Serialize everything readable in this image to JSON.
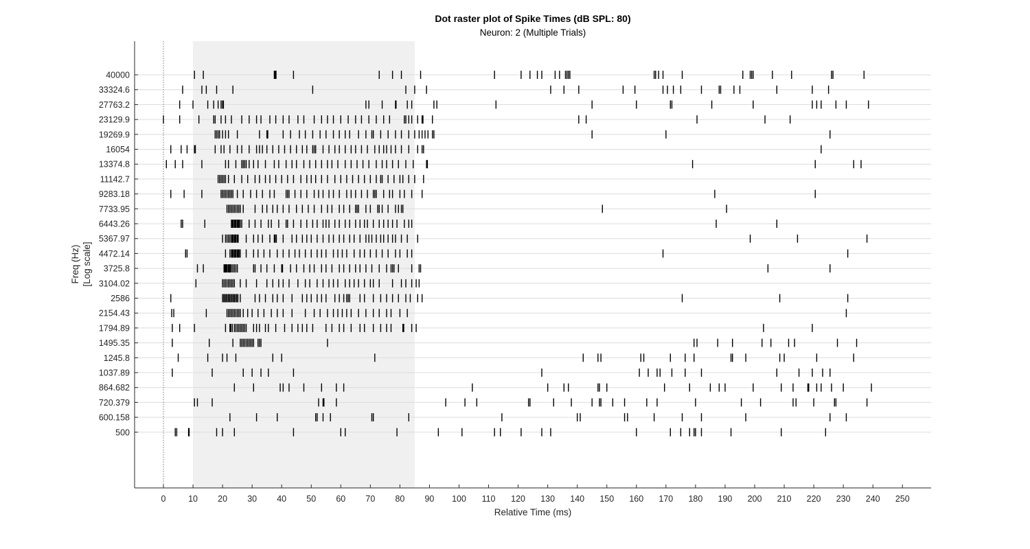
{
  "chart_data": {
    "type": "scatter",
    "title": "Dot raster plot of Spike Times (dB SPL: 80)",
    "subtitle": "Neuron: 2 (Multiple Trials)",
    "xlabel": "Relative Time (ms)",
    "ylabel": "Freq (Hz)",
    "ylabel_line2": "[Log scale]",
    "xlim": [
      -10,
      260
    ],
    "x_ticks": [
      0,
      10,
      20,
      30,
      40,
      50,
      60,
      70,
      80,
      90,
      100,
      110,
      120,
      130,
      140,
      150,
      160,
      170,
      180,
      190,
      200,
      210,
      220,
      230,
      240,
      250
    ],
    "y_scale": "log",
    "y_categories": [
      "500",
      "600.158",
      "720.379",
      "864.682",
      "1037.89",
      "1245.8",
      "1495.35",
      "1794.89",
      "2154.43",
      "2586",
      "3104.02",
      "3725.8",
      "4472.14",
      "5367.97",
      "6443.26",
      "7733.95",
      "9283.18",
      "11142.7",
      "13374.8",
      "16054",
      "19269.9",
      "23129.9",
      "27763.2",
      "33324.6",
      "40000"
    ],
    "grid": "horizontal",
    "stimulus_window": [
      10,
      85
    ],
    "colors": {
      "spike": "#000000",
      "stimulus": "#f0f0f0",
      "grid": "#dcdcdc",
      "axis": "#262626"
    },
    "spikes": [
      {
        "freq": "500",
        "times": [
          4,
          4.5,
          8.5,
          8.7,
          18,
          20,
          24,
          44,
          60,
          61.5,
          79,
          93,
          101,
          112,
          114,
          121,
          128,
          131,
          160,
          171.5,
          175,
          178,
          179.5,
          180,
          182,
          192,
          209,
          224
        ]
      },
      {
        "freq": "600.158",
        "times": [
          22.5,
          31.5,
          38.5,
          51.5,
          52,
          54,
          56.5,
          70.5,
          71,
          83,
          114.5,
          140,
          141,
          156,
          157,
          166,
          175.5,
          182,
          197,
          225.5,
          231
        ]
      },
      {
        "freq": "720.379",
        "times": [
          10.5,
          11.5,
          16.5,
          52.5,
          54,
          54.3,
          58.5,
          95.5,
          102,
          106,
          123.5,
          124,
          132,
          138,
          145,
          147.5,
          148,
          152,
          156,
          163.5,
          167,
          180,
          195.5,
          202,
          213,
          214,
          220,
          227,
          227.5,
          238
        ]
      },
      {
        "freq": "864.682",
        "times": [
          24,
          30.5,
          39.5,
          40.5,
          42.5,
          47.5,
          53.5,
          58.5,
          61,
          104.5,
          130,
          135.5,
          137,
          147,
          147.5,
          150,
          169.5,
          178,
          185,
          188,
          190,
          199.5,
          209,
          213,
          218,
          218.3,
          221,
          222.5,
          226,
          230,
          239.5
        ]
      },
      {
        "freq": "1037.89",
        "times": [
          3,
          16.5,
          27,
          30,
          33,
          35.5,
          44,
          128,
          161,
          164,
          167,
          168,
          172,
          176.5,
          182,
          207.5,
          215,
          219.5,
          223,
          225.5
        ]
      },
      {
        "freq": "1245.8",
        "times": [
          5,
          15,
          20,
          21.5,
          24.5,
          37,
          40,
          71.5,
          142,
          147,
          148,
          161.5,
          162.5,
          171.5,
          176.5,
          179.5,
          192,
          192.5,
          197,
          208.5,
          210,
          221,
          233.5
        ]
      },
      {
        "freq": "1495.35",
        "times": [
          3,
          15.5,
          23.5,
          26,
          26.5,
          27,
          27.5,
          28,
          28.5,
          29,
          29.5,
          30,
          30.5,
          32,
          32.5,
          33,
          55.5,
          179.5,
          180.5,
          187.5,
          192.5,
          202.5,
          205.5,
          211.5,
          213.5,
          228,
          234.5
        ]
      },
      {
        "freq": "1794.89",
        "times": [
          3,
          5.5,
          10.5,
          21,
          22.5,
          22.8,
          23.3,
          24,
          24.5,
          25,
          25.5,
          26,
          26.5,
          27,
          27.5,
          28,
          30.5,
          31.5,
          32.5,
          34.5,
          35.5,
          38,
          41,
          43.5,
          45.5,
          47,
          48.5,
          50.5,
          55,
          57,
          59.5,
          61,
          63.5,
          66.5,
          68,
          71,
          73.5,
          75.5,
          77,
          81,
          81.3,
          84,
          85.5,
          203,
          219.5
        ]
      },
      {
        "freq": "2154.43",
        "times": [
          2.8,
          3.5,
          14.5,
          21.5,
          22,
          22.5,
          23,
          23.5,
          24,
          24.5,
          25,
          25.5,
          26,
          27,
          28.5,
          30,
          32,
          34,
          36.5,
          38.5,
          40.5,
          43.5,
          48,
          51,
          53,
          55.5,
          57.5,
          59,
          60.5,
          62,
          63.5,
          66,
          68.5,
          71,
          73,
          75.5,
          77,
          80,
          82.5,
          231
        ]
      },
      {
        "freq": "2586",
        "times": [
          2.5,
          20,
          20.4,
          20.8,
          21.2,
          21.6,
          22,
          22.4,
          22.8,
          23.2,
          23.6,
          24,
          24.4,
          24.8,
          25.2,
          26,
          31,
          32.5,
          34.5,
          37,
          38.5,
          40.5,
          43.5,
          47,
          48.5,
          50,
          52,
          53.5,
          55,
          58,
          59.5,
          61,
          62,
          62.5,
          63,
          66.5,
          68,
          71,
          73.5,
          75.5,
          77.5,
          79.5,
          82,
          83.5,
          86,
          87.5,
          175.5,
          208.5,
          231.5
        ]
      },
      {
        "freq": "3104.02",
        "times": [
          11,
          20,
          20.5,
          21,
          21.5,
          22,
          22.5,
          23,
          23.5,
          24,
          26,
          28,
          31.5,
          35,
          37,
          39,
          40.5,
          42.5,
          45.5,
          48,
          49.5,
          52,
          54,
          56,
          57.5,
          59,
          61.5,
          63,
          64.5,
          66,
          68,
          70,
          71,
          73,
          77.5,
          80.5,
          82,
          84,
          85.5,
          86.5
        ]
      },
      {
        "freq": "3725.8",
        "times": [
          11.5,
          13.5,
          20.5,
          20.8,
          21,
          21.3,
          21.6,
          22,
          22.3,
          22.6,
          23,
          23.5,
          24,
          24.5,
          25,
          30.5,
          31,
          33,
          35,
          37.5,
          40,
          40.3,
          43,
          45,
          47.5,
          49.5,
          51,
          53.5,
          55,
          57,
          59.5,
          61,
          63,
          65,
          66.5,
          68.5,
          70.5,
          73,
          75.5,
          77,
          77.5,
          78,
          79.5,
          84,
          86.5,
          87,
          204.5,
          225.5
        ]
      },
      {
        "freq": "4472.14",
        "times": [
          7.5,
          8,
          21,
          22.5,
          23,
          23.3,
          23.6,
          24,
          24.3,
          24.6,
          25,
          25.3,
          25.6,
          26,
          28,
          30.5,
          32,
          34,
          36,
          38.5,
          40.5,
          42.5,
          44.5,
          46,
          48,
          50,
          52,
          53.5,
          55,
          57.5,
          59,
          60.5,
          62,
          64.5,
          66.5,
          68,
          70,
          72,
          74,
          76,
          78.5,
          80,
          82.5,
          84,
          169,
          231.5
        ]
      },
      {
        "freq": "5367.97",
        "times": [
          20,
          21,
          21.5,
          22,
          22.5,
          23,
          23.3,
          23.6,
          24,
          24.3,
          24.6,
          25,
          25.3,
          28,
          30.5,
          32,
          33.5,
          36,
          37.5,
          37.8,
          38.2,
          40.5,
          43.5,
          45,
          47,
          48.5,
          50,
          52,
          54,
          56,
          57.5,
          59.5,
          61,
          63,
          64.5,
          66.5,
          68.5,
          69.5,
          70.5,
          72,
          73.5,
          74.5,
          76,
          77.5,
          78.5,
          80.5,
          82.5,
          86,
          198.5,
          214.5,
          238
        ]
      },
      {
        "freq": "6443.26",
        "times": [
          6,
          6.5,
          14,
          23,
          23.3,
          23.6,
          24,
          24.3,
          24.6,
          25,
          25.3,
          25.6,
          26,
          26.5,
          29,
          31,
          33,
          35.5,
          36.5,
          39,
          41.5,
          42,
          44,
          46.5,
          48.5,
          50.5,
          52,
          54,
          55,
          56,
          58,
          59.5,
          61.5,
          63,
          65,
          66.5,
          68,
          69,
          71,
          73,
          74.5,
          76,
          77.5,
          79,
          81.5,
          83,
          84,
          187,
          207.5
        ]
      },
      {
        "freq": "7733.95",
        "times": [
          21.5,
          22,
          22.5,
          23,
          23.5,
          24,
          24.5,
          25,
          25.5,
          26,
          27,
          31,
          33.5,
          35,
          37,
          38.5,
          40.5,
          42.5,
          45,
          47,
          49,
          51,
          53.5,
          55.5,
          57,
          59.5,
          61,
          63,
          65,
          65.5,
          66,
          68.5,
          70,
          72.5,
          73,
          74,
          76,
          78.5,
          79.5,
          80.5,
          81,
          148.5,
          190.5
        ]
      },
      {
        "freq": "9283.18",
        "times": [
          2.5,
          7,
          13,
          19.5,
          20,
          20.5,
          21,
          21.5,
          22,
          22.5,
          23,
          23.5,
          25,
          27,
          29.5,
          31.5,
          33.5,
          36,
          37.5,
          41.5,
          42,
          42.5,
          44.5,
          46.5,
          48.5,
          51,
          52.5,
          54,
          56,
          57.5,
          59.5,
          62,
          63.5,
          65,
          67,
          69,
          71,
          71.5,
          72,
          74.5,
          76.5,
          77.5,
          80,
          81.5,
          84,
          87.5,
          186.5,
          220.5
        ]
      },
      {
        "freq": "11142.7",
        "times": [
          18.5,
          19,
          19.5,
          20,
          20.5,
          21,
          22,
          24,
          26.5,
          28.5,
          31,
          32.5,
          34.5,
          36,
          38,
          40,
          42,
          44,
          46.5,
          48.5,
          50,
          51.5,
          53.5,
          55.5,
          58,
          60,
          62,
          64,
          66,
          68,
          70,
          72,
          73.5,
          74,
          76,
          78,
          80,
          81,
          83,
          85,
          88
        ]
      },
      {
        "freq": "13374.8",
        "times": [
          1,
          4,
          6.5,
          13,
          21,
          22,
          24.5,
          26.5,
          27,
          27.5,
          28,
          29,
          30.5,
          32,
          34.5,
          37.5,
          39,
          41.5,
          43.5,
          45,
          47.5,
          49.5,
          51.5,
          53.5,
          55.5,
          57,
          59,
          61.5,
          63.5,
          65.5,
          67.5,
          69.5,
          72,
          74,
          75.5,
          77.5,
          79.5,
          82,
          84.5,
          89,
          89.3,
          179,
          220.5,
          233.5,
          236
        ]
      },
      {
        "freq": "16054",
        "times": [
          2.5,
          6,
          8,
          10.5,
          10.8,
          17.5,
          19.5,
          20.5,
          22.5,
          25,
          26.5,
          29,
          31.5,
          32.5,
          33.5,
          35,
          37,
          39,
          41,
          43,
          45,
          47,
          48.5,
          50.5,
          51,
          51.5,
          54,
          56,
          58,
          59.5,
          61.5,
          63.5,
          65,
          67,
          69,
          71.5,
          73,
          74.5,
          75.5,
          77,
          78.5,
          80.5,
          83,
          86,
          87.5,
          88,
          222.5
        ]
      },
      {
        "freq": "19269.9",
        "times": [
          17.5,
          18,
          18.5,
          19,
          20,
          21,
          22,
          25,
          32.5,
          35,
          35.3,
          40.5,
          43,
          46,
          48,
          50.5,
          53,
          55,
          57.5,
          59.5,
          61.5,
          63,
          66,
          68.5,
          70.5,
          71,
          73.5,
          76,
          78.5,
          80.5,
          83,
          85,
          86.5,
          87.5,
          88.5,
          89.5,
          91,
          91.5,
          145,
          170,
          225.5
        ]
      },
      {
        "freq": "23129.9",
        "times": [
          0,
          5.5,
          12,
          17,
          17.5,
          19.5,
          21,
          23,
          26.5,
          29,
          31.5,
          33,
          36,
          38,
          40.5,
          42.5,
          45.5,
          47.5,
          51,
          53.5,
          55.5,
          57.5,
          60,
          62.5,
          65,
          67,
          69.5,
          72,
          74.5,
          76.5,
          81.5,
          82,
          83,
          84,
          86,
          87.5,
          87.8,
          91,
          140.5,
          143,
          180.5,
          203.5,
          212
        ]
      },
      {
        "freq": "27763.2",
        "times": [
          5.5,
          10,
          15,
          17,
          18.5,
          19.5,
          20,
          20.3,
          68.5,
          69.5,
          74,
          78.5,
          78.7,
          82.5,
          84,
          91.5,
          92.5,
          112.5,
          145,
          160,
          171.5,
          172,
          185.5,
          199.5,
          219.5,
          221,
          222.5,
          227.5,
          231,
          238.5
        ]
      },
      {
        "freq": "33324.6",
        "times": [
          6.5,
          13,
          14.5,
          18,
          23.5,
          50.5,
          82,
          85,
          89,
          131,
          135.5,
          140.5,
          155.5,
          159.5,
          169,
          170.5,
          172.5,
          175,
          182,
          188,
          188.5,
          193,
          195,
          207.5,
          219.5,
          225
        ]
      },
      {
        "freq": "40000",
        "times": [
          10.5,
          13.5,
          37.5,
          37.8,
          38.1,
          44,
          73,
          77.5,
          80.5,
          87,
          112,
          121,
          124,
          126.5,
          128,
          132.5,
          134,
          136,
          136.5,
          137,
          137.5,
          166,
          166.5,
          167.5,
          169,
          175.5,
          196,
          198.5,
          199,
          199.5,
          206,
          212.5,
          226,
          226.5,
          237
        ]
      }
    ]
  }
}
